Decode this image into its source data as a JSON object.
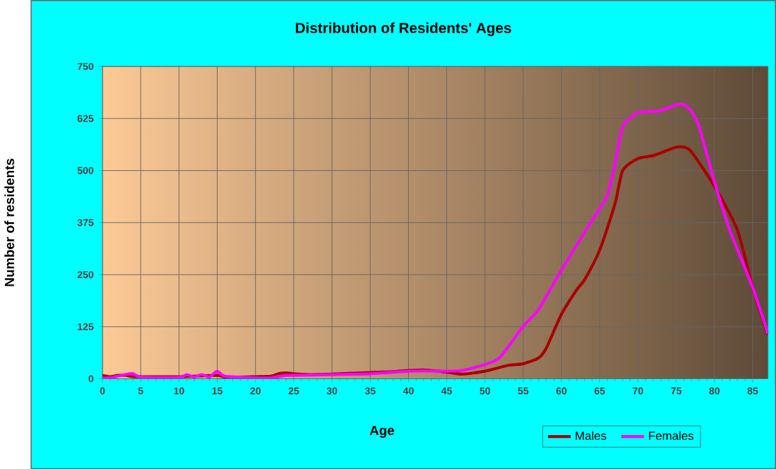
{
  "chart_data": {
    "type": "line",
    "title": "Distribution of Residents' Ages",
    "xlabel": "Age",
    "ylabel": "Number of residents",
    "xlim": [
      0,
      87
    ],
    "xticks": [
      0,
      5,
      10,
      15,
      20,
      25,
      30,
      35,
      40,
      45,
      50,
      55,
      60,
      65,
      70,
      75,
      80,
      85
    ],
    "ylim": [
      0,
      750
    ],
    "yticks": [
      0,
      125,
      250,
      375,
      500,
      625,
      750
    ],
    "grid": true,
    "legend": "bottom right",
    "marker": "none",
    "line_style": "solid",
    "series": [
      {
        "name": "Males",
        "color": "#aa0000",
        "x": [
          0,
          1,
          2,
          3,
          4,
          5,
          10,
          15,
          16,
          20,
          22,
          23,
          24,
          25,
          27,
          30,
          35,
          38,
          40,
          42,
          45,
          47,
          50,
          53,
          55,
          57,
          58,
          60,
          62,
          63,
          65,
          67,
          68,
          70,
          72,
          75,
          76,
          77,
          80,
          83,
          85,
          87
        ],
        "values": [
          8,
          5,
          8,
          8,
          5,
          5,
          5,
          8,
          4,
          5,
          6,
          12,
          14,
          12,
          10,
          11,
          15,
          17,
          20,
          21,
          16,
          11,
          18,
          32,
          36,
          50,
          73,
          155,
          214,
          237,
          309,
          420,
          500,
          529,
          536,
          556,
          556,
          545,
          462,
          357,
          219,
          105
        ]
      },
      {
        "name": "Females",
        "color": "#ff00ff",
        "x": [
          0,
          1,
          3,
          4,
          5,
          10,
          11,
          12,
          13,
          14,
          15,
          16,
          20,
          22,
          24,
          25,
          30,
          35,
          40,
          42,
          45,
          47,
          50,
          52,
          55,
          57,
          60,
          63,
          65,
          66,
          67,
          68,
          70,
          72,
          73,
          75,
          76,
          77,
          78,
          80,
          82,
          85,
          87
        ],
        "values": [
          2,
          2,
          10,
          12,
          4,
          3,
          10,
          4,
          10,
          4,
          18,
          6,
          2,
          2,
          8,
          8,
          10,
          12,
          18,
          19,
          18,
          20,
          34,
          52,
          126,
          166,
          261,
          351,
          409,
          441,
          515,
          605,
          639,
          642,
          644,
          658,
          658,
          642,
          605,
          473,
          357,
          219,
          108
        ]
      }
    ]
  }
}
